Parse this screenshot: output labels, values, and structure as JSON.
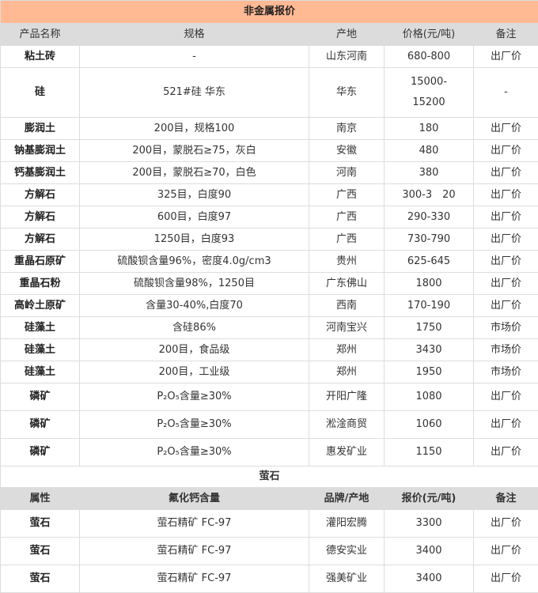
{
  "title": "非金属报价",
  "headers": [
    "产品名称",
    "规格",
    "产地",
    "价格(元/吨)",
    "备注"
  ],
  "rows": [
    [
      "粘土砖",
      "-",
      "山东河南",
      "680-800",
      "出厂价"
    ],
    [
      "硅",
      "521#硅 华东",
      "华东",
      "15000-\n15200",
      "-"
    ],
    [
      "膨润土",
      "200目，规格100",
      "南京",
      "180",
      "出厂价"
    ],
    [
      "钠基膨润土",
      "200目，蒙脱石≥75，灰白",
      "安徽",
      "480",
      "出厂价"
    ],
    [
      "钙基膨润土",
      "200目，蒙脱石≥70，白色",
      "河南",
      "380",
      "出厂价"
    ],
    [
      "方解石",
      "325目，白度90",
      "广西",
      "300-3　20",
      "出厂价"
    ],
    [
      "方解石",
      "600目，白度97",
      "广西",
      "290-330",
      "出厂价"
    ],
    [
      "方解石",
      "1250目，白度93",
      "广西",
      "730-790",
      "出厂价"
    ],
    [
      "重晶石原矿",
      "硫酸钡含量96%，密度4.0g/cm3",
      "贵州",
      "625-645",
      "出厂价"
    ],
    [
      "重晶石粉",
      "硫酸钡含量98%，1250目",
      "广东佛山",
      "1800",
      "出厂价"
    ],
    [
      "高岭土原矿",
      "含量30-40%,白度70",
      "西南",
      "170-190",
      "出厂价"
    ],
    [
      "硅藻土",
      "含硅86%",
      "河南宝兴",
      "1750",
      "市场价"
    ],
    [
      "硅藻土",
      "200目，食品级",
      "郑州",
      "3430",
      "市场价"
    ],
    [
      "硅藻土",
      "200目，工业级",
      "郑州",
      "1950",
      "市场价"
    ],
    [
      "磷矿",
      "P₂O₅含量≥30%",
      "开阳广隆",
      "1080",
      "出厂价"
    ],
    [
      "磷矿",
      "P₂O₅含量≥30%",
      "淞淦商贸",
      "1060",
      "出厂价"
    ],
    [
      "磷矿",
      "P₂O₅含量≥30%",
      "惠发矿业",
      "1150",
      "出厂价"
    ]
  ],
  "section2": {
    "title": "萤石",
    "headers": [
      "属性",
      "氟化钙含量",
      "品牌/产地",
      "报价(元/吨)",
      "备注"
    ],
    "rows": [
      [
        "萤石",
        "萤石精矿  FC-97",
        "灌阳宏腾",
        "3300",
        "出厂价"
      ],
      [
        "萤石",
        "萤石精矿  FC-97",
        "德安实业",
        "3400",
        "出厂价"
      ],
      [
        "萤石",
        "萤石精矿  FC-97",
        "强美矿业",
        "3400",
        "出厂价"
      ]
    ]
  },
  "colors": {
    "title_bg": "#ffb993",
    "header_bg": "#dcdcdc",
    "border": "#dddddd"
  }
}
